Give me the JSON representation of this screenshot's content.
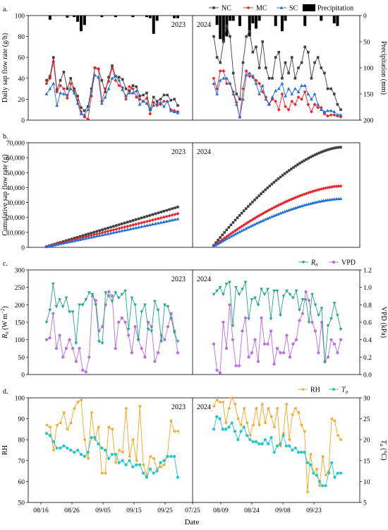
{
  "figure": {
    "xlabel": "Date"
  },
  "legend": {
    "NC": "NC",
    "MC": "MC",
    "SC": "SC",
    "precip": "Precipitation",
    "Rn": "Rn",
    "VPD": "VPD",
    "RH": "RH",
    "Ta": "Ta"
  },
  "colors": {
    "NC": "#404040",
    "MC": "#e8242b",
    "SC": "#1f6fd6",
    "precip": "#000000",
    "Rn": "#22a884",
    "VPD": "#b86fe0",
    "RH": "#f5a623",
    "Ta": "#1ec8c8"
  },
  "xaxis": {
    "left_ticks": [
      "08/16",
      "08/26",
      "09/05",
      "09/15",
      "09/25"
    ],
    "right_ticks": [
      "07/25",
      "08/09",
      "08/24",
      "09/08",
      "09/23"
    ]
  },
  "chart_data": [
    {
      "panel": "a.",
      "type": "line",
      "ylabel": "Daily sap flow rate (g/h)",
      "ylim": [
        0,
        100
      ],
      "yticks": [
        0,
        20,
        40,
        60,
        80,
        100
      ],
      "y2label": "Precipitation (mm)",
      "y2lim": [
        0,
        200
      ],
      "y2ticks": [
        0,
        50,
        100,
        150,
        200
      ],
      "y2_inverted": true,
      "years": [
        "2023",
        "2024"
      ],
      "series_2023": {
        "NC": [
          38,
          42,
          60,
          29,
          38,
          46,
          30,
          40,
          30,
          23,
          12,
          9,
          13,
          30,
          50,
          49,
          38,
          27,
          41,
          52,
          42,
          41,
          39,
          30,
          28,
          33,
          32,
          23,
          24,
          26,
          10,
          22,
          18,
          20,
          24,
          24,
          19,
          20,
          14
        ],
        "MC": [
          35,
          40,
          56,
          27,
          33,
          30,
          21,
          35,
          28,
          19,
          8,
          3,
          1,
          23,
          50,
          49,
          18,
          30,
          37,
          50,
          38,
          33,
          31,
          20,
          32,
          30,
          22,
          20,
          18,
          21,
          6,
          17,
          14,
          15,
          18,
          18,
          10,
          9,
          8
        ],
        "SC": [
          25,
          30,
          35,
          14,
          26,
          25,
          24,
          30,
          26,
          16,
          6,
          5,
          10,
          28,
          43,
          41,
          16,
          22,
          30,
          40,
          42,
          38,
          29,
          23,
          26,
          26,
          28,
          15,
          18,
          16,
          10,
          14,
          16,
          17,
          13,
          18,
          9,
          8,
          7
        ],
        "precip": [
          0,
          8,
          0,
          0,
          0,
          0,
          4,
          0,
          3,
          12,
          30,
          18,
          0,
          0,
          0,
          0,
          3,
          0,
          0,
          0,
          3,
          0,
          0,
          0,
          0,
          3,
          0,
          0,
          0,
          3,
          5,
          35,
          10,
          0,
          0,
          0,
          0,
          5,
          5
        ]
      },
      "series_2024": {
        "NC": [
          80,
          60,
          55,
          75,
          90,
          80,
          45,
          25,
          20,
          55,
          80,
          85,
          65,
          70,
          50,
          75,
          50,
          40,
          40,
          60,
          65,
          40,
          55,
          45,
          60,
          40,
          50,
          55,
          70,
          65,
          40,
          55,
          60,
          50,
          45,
          30,
          30,
          25,
          15,
          10
        ],
        "MC": [
          40,
          30,
          47,
          47,
          35,
          35,
          27,
          17,
          3,
          30,
          47,
          42,
          42,
          38,
          35,
          27,
          22,
          15,
          20,
          18,
          10,
          25,
          13,
          10,
          18,
          15,
          22,
          20,
          27,
          15,
          8,
          15,
          12,
          12,
          6,
          4,
          5,
          5,
          4,
          3
        ],
        "SC": [
          35,
          25,
          38,
          40,
          40,
          35,
          25,
          15,
          3,
          20,
          43,
          45,
          41,
          35,
          25,
          33,
          20,
          15,
          22,
          28,
          30,
          35,
          23,
          30,
          25,
          30,
          27,
          33,
          33,
          25,
          20,
          25,
          15,
          10,
          8,
          9,
          9,
          8,
          5,
          5
        ],
        "precip": [
          0,
          18,
          45,
          50,
          40,
          10,
          10,
          0,
          20,
          0,
          0,
          40,
          15,
          25,
          10,
          0,
          0,
          0,
          0,
          20,
          0,
          30,
          10,
          0,
          0,
          0,
          0,
          0,
          20,
          0,
          0,
          0,
          0,
          10,
          0,
          0,
          0,
          15,
          20,
          0
        ]
      }
    },
    {
      "panel": "b.",
      "type": "line",
      "ylabel": "Cumulative sap flow rate (g)",
      "ylim": [
        0,
        70000
      ],
      "yticks": [
        "0",
        "10,000",
        "20,000",
        "30,000",
        "40,000",
        "50,000",
        "60,000",
        "70,000"
      ],
      "years": [
        "2023",
        "2024"
      ],
      "final_2023": {
        "NC": 27000,
        "MC": 22500,
        "SC": 19000
      },
      "final_2024": {
        "NC": 67000,
        "MC": 41000,
        "SC": 32500
      }
    },
    {
      "panel": "c.",
      "type": "line",
      "ylabel": "Rn (W m−2)",
      "ylim": [
        0,
        300
      ],
      "yticks": [
        0,
        50,
        100,
        150,
        200,
        250,
        300
      ],
      "y2label": "VPD (kPa)",
      "y2lim": [
        0,
        1.2
      ],
      "y2ticks": [
        "0.0",
        "0.2",
        "0.4",
        "0.6",
        "0.8",
        "1.0",
        "1.2"
      ],
      "years": [
        "2023",
        "2024"
      ],
      "series_2023": {
        "Rn": [
          150,
          185,
          260,
          195,
          215,
          195,
          220,
          180,
          180,
          90,
          200,
          200,
          215,
          235,
          230,
          200,
          95,
          90,
          235,
          225,
          210,
          235,
          220,
          230,
          240,
          130,
          220,
          200,
          100,
          180,
          200,
          130,
          125,
          210,
          185,
          95,
          200,
          195,
          160,
          120,
          95
        ],
        "VPD": [
          0.4,
          0.42,
          0.7,
          0.3,
          0.45,
          0.2,
          0.3,
          0.4,
          0.3,
          0.15,
          0.3,
          0.05,
          0.03,
          0.2,
          0.9,
          0.85,
          0.5,
          0.55,
          0.8,
          0.95,
          0.9,
          0.3,
          0.6,
          0.65,
          0.6,
          0.45,
          0.25,
          0.55,
          0.4,
          0.3,
          0.2,
          0.6,
          0.55,
          0.15,
          0.25,
          0.45,
          0.4,
          0.55,
          0.7,
          0.5,
          0.25
        ]
      },
      "series_2024": {
        "Rn": [
          230,
          240,
          250,
          230,
          260,
          265,
          140,
          250,
          230,
          245,
          265,
          160,
          215,
          220,
          200,
          245,
          230,
          245,
          160,
          240,
          240,
          170,
          225,
          240,
          230,
          220,
          240,
          185,
          215,
          215,
          150,
          230,
          200,
          170,
          190,
          35,
          140,
          160,
          205,
          170,
          130
        ],
        "VPD": [
          0.35,
          0.05,
          0.02,
          0.6,
          0.3,
          0.8,
          0.4,
          0.1,
          0.1,
          0.5,
          0.65,
          0.2,
          0.25,
          0.4,
          0.15,
          0.65,
          0.35,
          0.35,
          0.5,
          0.12,
          0.3,
          0.25,
          0.25,
          0.45,
          0.2,
          0.35,
          0.4,
          0.62,
          0.7,
          0.95,
          0.85,
          0.6,
          0.5,
          0.25,
          0.6,
          0.15,
          0.2,
          0.4,
          0.35,
          0.25,
          0.4
        ]
      }
    },
    {
      "panel": "d.",
      "type": "line",
      "ylabel": "RH",
      "ylim": [
        50,
        100
      ],
      "yticks": [
        50,
        60,
        70,
        80,
        90,
        100
      ],
      "y2label": "Ta (°C)",
      "y2lim": [
        5,
        30
      ],
      "y2ticks": [
        5,
        10,
        15,
        20,
        25,
        30
      ],
      "years": [
        "2023",
        "2024"
      ],
      "series_2023": {
        "RH": [
          87,
          86,
          75,
          87,
          88,
          93,
          85,
          88,
          95,
          98,
          99,
          80,
          71,
          93,
          80,
          86,
          64,
          64,
          86,
          85,
          69,
          75,
          74,
          95,
          72,
          80,
          70,
          96,
          68,
          63,
          72,
          71,
          66,
          67,
          68,
          72,
          89,
          84,
          84
        ],
        "Ta": [
          21.5,
          21,
          19.5,
          18,
          18,
          18.5,
          18,
          17.5,
          17,
          17.5,
          16.5,
          16,
          17,
          20.5,
          20.5,
          19,
          18,
          17.5,
          15.5,
          16.5,
          16.5,
          14.5,
          15,
          14,
          15,
          13.5,
          14,
          14,
          12,
          11,
          13,
          12,
          12.5,
          14.5,
          15,
          16,
          16,
          16,
          11
        ]
      },
      "series_2024": {
        "RH": [
          96,
          99,
          98,
          98,
          88,
          95,
          100,
          97,
          90,
          87,
          95,
          88,
          82,
          87,
          95,
          87,
          97,
          88,
          95,
          91,
          86,
          95,
          77,
          83,
          97,
          80,
          92,
          95,
          93,
          87,
          84,
          55,
          73,
          64,
          66,
          58,
          72,
          63,
          65,
          90,
          89,
          82,
          80
        ],
        "Ta": [
          22.5,
          25.5,
          25,
          22.5,
          22.5,
          23,
          24,
          22,
          20,
          22,
          23,
          21,
          20,
          19.5,
          19.5,
          19,
          19,
          20,
          19,
          20.5,
          17,
          18.5,
          19,
          21,
          18.5,
          18.5,
          17.5,
          18,
          17,
          17,
          17,
          14.5,
          14,
          12,
          11.5,
          10,
          9,
          9,
          12,
          14.5,
          11,
          12,
          12
        ]
      }
    }
  ]
}
